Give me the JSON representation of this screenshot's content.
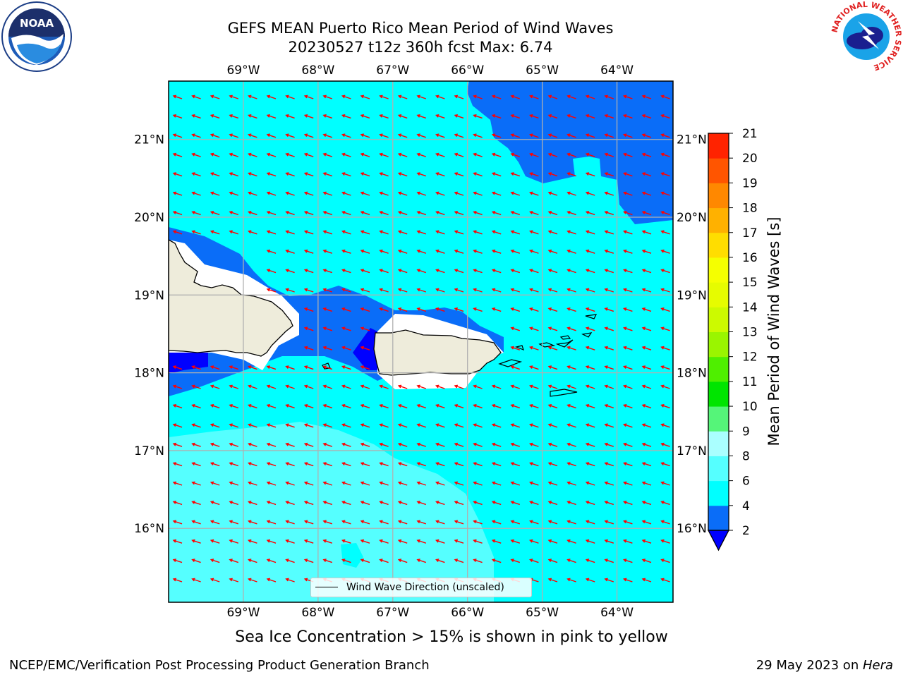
{
  "header": {
    "title_line1": "GEFS MEAN Puerto Rico Mean Period of Wind Waves",
    "title_line2": "20230527 t12z 360h fcst   Max: 6.74"
  },
  "logos": {
    "left": {
      "icon": "noaa-logo-icon",
      "text": "NOAA"
    },
    "right": {
      "icon": "national-weather-service-logo-icon",
      "text": "NATIONAL WEATHER SERVICE"
    }
  },
  "map": {
    "lon_labels": [
      "69°W",
      "68°W",
      "67°W",
      "66°W",
      "65°W",
      "64°W"
    ],
    "lat_labels": [
      "21°N",
      "20°N",
      "19°N",
      "18°N",
      "17°N",
      "16°N"
    ],
    "lon_values": [
      -69,
      -68,
      -67,
      -66,
      -65,
      -64
    ],
    "lat_values": [
      21,
      20,
      19,
      18,
      17,
      16
    ],
    "extent": {
      "lon_min": -70,
      "lon_max": -63.25,
      "lat_min": 15.05,
      "lat_max": 21.75
    },
    "land_color": "#eeecdb",
    "arrow_color": "#ff0000",
    "grid": true,
    "wind_wave_direction": "west-northwest",
    "legend_label": "Wind Wave Direction (unscaled)"
  },
  "colorbar": {
    "title": "Mean Period of Wind Waves [s]",
    "ticks": [
      "2",
      "4",
      "6",
      "8",
      "9",
      "10",
      "11",
      "12",
      "13",
      "14",
      "15",
      "16",
      "17",
      "18",
      "19",
      "20",
      "21"
    ],
    "colors": [
      "#0a6df8",
      "#00ffff",
      "#55ffff",
      "#aaffff",
      "#55f579",
      "#00e500",
      "#4fef00",
      "#9af500",
      "#ccfa00",
      "#e6fc00",
      "#f5ff00",
      "#ffdd00",
      "#ffb100",
      "#ff8800",
      "#ff5500",
      "#ff2300"
    ],
    "under_color": "#0000ff"
  },
  "footer": {
    "sea_ice_note": "Sea Ice Concentration > 15% is shown in pink to yellow",
    "producer": "NCEP/EMC/Verification Post Processing Product Generation Branch",
    "date": "29 May 2023 on ",
    "machine": "Hera"
  }
}
